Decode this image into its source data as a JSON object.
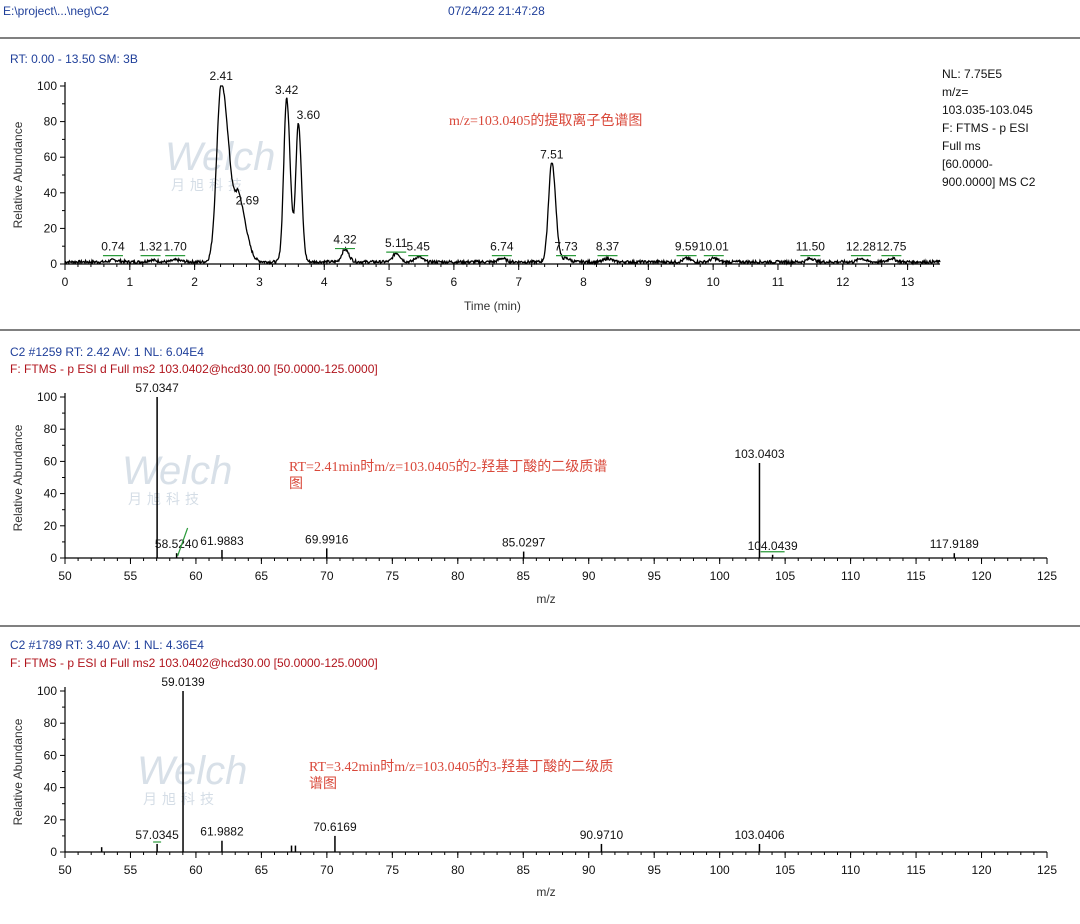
{
  "header": {
    "path": "E:\\project\\...\\neg\\C2",
    "datetime": "07/24/22 21:47:28"
  },
  "watermark": {
    "brand": "Welch",
    "chinese": "月旭科技"
  },
  "chart_data": [
    {
      "id": "xic",
      "type": "line",
      "info_line1": "RT: 0.00 - 13.50   SM: 3B",
      "nl_info": [
        "NL: 7.75E5",
        "m/z=",
        "103.035-103.045",
        "F: FTMS - p ESI",
        "Full ms",
        "[60.0000-",
        "900.0000]  MS C2"
      ],
      "annotation": [
        "m/z=103.0405的提取离子色谱图"
      ],
      "xlabel": "Time (min)",
      "ylabel": "Relative Abundance",
      "xlim": [
        0,
        13.5
      ],
      "ylim": [
        0,
        100
      ],
      "xticks": [
        0,
        1,
        2,
        3,
        4,
        5,
        6,
        7,
        8,
        9,
        10,
        11,
        12,
        13
      ],
      "yticks": [
        0,
        20,
        40,
        60,
        80,
        100
      ],
      "baseline": 2,
      "peaks": [
        {
          "rt": 2.41,
          "height": 100,
          "width": 0.07,
          "label": "2.41"
        },
        {
          "rt": 2.69,
          "height": 30,
          "width": 0.06,
          "label": "2.69"
        },
        {
          "rt": 3.42,
          "height": 92,
          "width": 0.045,
          "label": "3.42"
        },
        {
          "rt": 3.6,
          "height": 78,
          "width": 0.04,
          "label": "3.60"
        },
        {
          "rt": 7.51,
          "height": 56,
          "width": 0.05,
          "label": "7.51"
        },
        {
          "rt": 4.32,
          "height": 7,
          "width": 0.05,
          "label": "4.32"
        },
        {
          "rt": 5.11,
          "height": 5,
          "width": 0.05,
          "label": "5.11"
        },
        {
          "rt": 0.74,
          "height": 1,
          "width": 0.05,
          "label": "0.74"
        },
        {
          "rt": 1.32,
          "height": 1,
          "width": 0.05,
          "label": "1.32"
        },
        {
          "rt": 1.7,
          "height": 1,
          "width": 0.05,
          "label": "1.70"
        },
        {
          "rt": 5.45,
          "height": 3,
          "width": 0.05,
          "label": "5.45"
        },
        {
          "rt": 6.74,
          "height": 2,
          "width": 0.05,
          "label": "6.74"
        },
        {
          "rt": 7.73,
          "height": 2,
          "width": 0.05,
          "label": "7.73"
        },
        {
          "rt": 8.37,
          "height": 2,
          "width": 0.05,
          "label": "8.37"
        },
        {
          "rt": 9.59,
          "height": 2,
          "width": 0.05,
          "label": "9.59"
        },
        {
          "rt": 10.01,
          "height": 2,
          "width": 0.05,
          "label": "10.01"
        },
        {
          "rt": 11.5,
          "height": 2,
          "width": 0.05,
          "label": "11.50"
        },
        {
          "rt": 12.28,
          "height": 2,
          "width": 0.05,
          "label": "12.28"
        },
        {
          "rt": 12.75,
          "height": 2,
          "width": 0.05,
          "label": "12.75"
        }
      ]
    },
    {
      "id": "ms2a",
      "type": "bar",
      "info_line1": "C2 #1259   RT: 2.42   AV: 1   NL: 6.04E4",
      "info_line2": "F: FTMS - p ESI d Full ms2 103.0402@hcd30.00 [50.0000-125.0000]",
      "annotation": [
        "RT=2.41min时m/z=103.0405的2-羟基丁酸的二级质谱",
        "图"
      ],
      "xlabel": "m/z",
      "ylabel": "Relative Abundance",
      "xlim": [
        50,
        125
      ],
      "ylim": [
        0,
        100
      ],
      "xticks": [
        50,
        55,
        60,
        65,
        70,
        75,
        80,
        85,
        90,
        95,
        100,
        105,
        110,
        115,
        120,
        125
      ],
      "yticks": [
        0,
        20,
        40,
        60,
        80,
        100
      ],
      "peaks": [
        {
          "mz": 57.0347,
          "intensity": 100,
          "label": "57.0347"
        },
        {
          "mz": 58.524,
          "intensity": 3,
          "label": "58.5240"
        },
        {
          "mz": 61.9883,
          "intensity": 5,
          "label": "61.9883"
        },
        {
          "mz": 69.9916,
          "intensity": 6,
          "label": "69.9916"
        },
        {
          "mz": 85.0297,
          "intensity": 4,
          "label": "85.0297"
        },
        {
          "mz": 103.0403,
          "intensity": 59,
          "label": "103.0403"
        },
        {
          "mz": 104.0439,
          "intensity": 2,
          "label": "104.0439"
        },
        {
          "mz": 117.9189,
          "intensity": 3,
          "label": "117.9189"
        }
      ]
    },
    {
      "id": "ms2b",
      "type": "bar",
      "info_line1": "C2 #1789   RT: 3.40   AV: 1   NL: 4.36E4",
      "info_line2": "F: FTMS - p ESI d Full ms2 103.0402@hcd30.00 [50.0000-125.0000]",
      "annotation": [
        "RT=3.42min时m/z=103.0405的3-羟基丁酸的二级质",
        "谱图"
      ],
      "xlabel": "m/z",
      "ylabel": "Relative Abundance",
      "xlim": [
        50,
        125
      ],
      "ylim": [
        0,
        100
      ],
      "xticks": [
        50,
        55,
        60,
        65,
        70,
        75,
        80,
        85,
        90,
        95,
        100,
        105,
        110,
        115,
        120,
        125
      ],
      "yticks": [
        0,
        20,
        40,
        60,
        80,
        100
      ],
      "peaks": [
        {
          "mz": 57.0345,
          "intensity": 5,
          "label": "57.0345"
        },
        {
          "mz": 59.0139,
          "intensity": 100,
          "label": "59.0139"
        },
        {
          "mz": 61.9882,
          "intensity": 7,
          "label": "61.9882"
        },
        {
          "mz": 70.6169,
          "intensity": 10,
          "label": "70.6169"
        },
        {
          "mz": 90.971,
          "intensity": 5,
          "label": "90.9710"
        },
        {
          "mz": 103.0406,
          "intensity": 5,
          "label": "103.0406"
        },
        {
          "mz": 52.8,
          "intensity": 3,
          "label": ""
        },
        {
          "mz": 67.3,
          "intensity": 4,
          "label": ""
        },
        {
          "mz": 67.6,
          "intensity": 4,
          "label": ""
        }
      ]
    }
  ]
}
